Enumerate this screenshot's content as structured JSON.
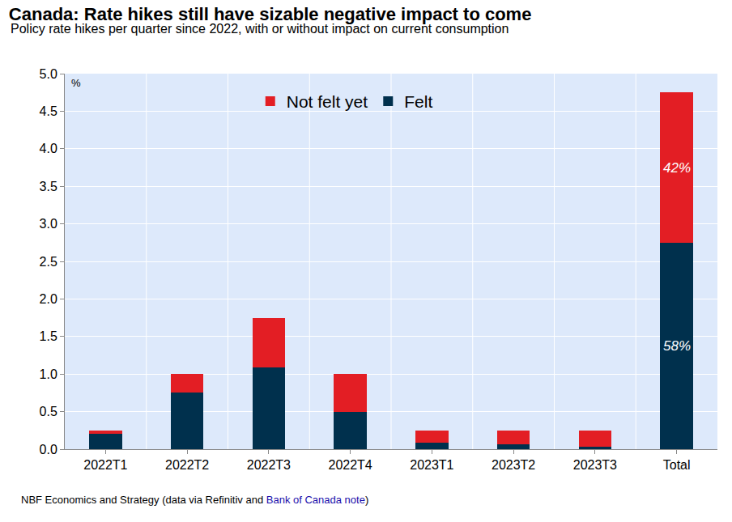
{
  "chart_data": {
    "type": "bar",
    "title": "Canada: Rate hikes still have sizable negative impact to come",
    "subtitle": "Policy rate hikes per quarter since 2022, with or without impact on current consumption",
    "y_label": "%",
    "source": "NBF Economics and Strategy (data via Refinitiv and Bank of Canada note)",
    "source_link": "Bank of Canada note",
    "categories": [
      "2022T1",
      "2022T2",
      "2022T3",
      "2022T4",
      "2023T1",
      "2023T2",
      "2023T3",
      "Total"
    ],
    "series": [
      {
        "name": "Felt",
        "color": "#00304d",
        "values": [
          0.21,
          0.75,
          1.09,
          0.5,
          0.09,
          0.06,
          0.03,
          2.75
        ]
      },
      {
        "name": "Not felt yet",
        "color": "#e31e24",
        "values": [
          0.04,
          0.25,
          0.66,
          0.5,
          0.16,
          0.19,
          0.22,
          2.0
        ]
      }
    ],
    "stacked": true,
    "annotations": [
      {
        "text": "58%",
        "x": "Total",
        "series": "Felt"
      },
      {
        "text": "42%",
        "x": "Total",
        "series": "Not felt yet"
      }
    ],
    "ylim": [
      0,
      5
    ],
    "yticks": [
      {
        "value": 0,
        "label": "0.0"
      },
      0.5,
      {
        "value": 1,
        "label": "1.0"
      },
      1.5,
      {
        "value": 2,
        "label": "2.0"
      },
      2.5,
      {
        "value": 3,
        "label": "3.0"
      },
      3.5,
      {
        "value": 4,
        "label": "4.0"
      },
      4.5,
      {
        "value": 5,
        "label": "5.0"
      }
    ],
    "grid": true,
    "legend": "top"
  }
}
